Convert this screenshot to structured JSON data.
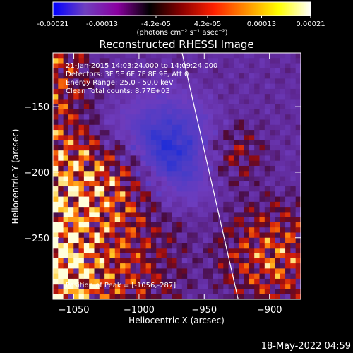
{
  "chart_data": {
    "type": "heatmap",
    "title": "Reconstructed RHESSI Image",
    "colorbar": {
      "ticks": [
        "-0.00021",
        "-0.00013",
        "-4.2e-05",
        "4.2e-05",
        "0.00013",
        "0.00021"
      ],
      "tick_values": [
        -0.00021,
        -0.00013,
        -4.2e-05,
        4.2e-05,
        0.00013,
        0.00021
      ],
      "range": [
        -0.00021,
        0.00021
      ],
      "units_label": "(photons cm⁻² s⁻¹ asec⁻²)",
      "colors": [
        "#0000ff",
        "#6f3fbf",
        "#8a00a0",
        "#000000",
        "#8b0000",
        "#ff2000",
        "#ff9000",
        "#ffff00",
        "#ffffff"
      ]
    },
    "xlabel": "Heliocentric X (arcsec)",
    "ylabel": "Heliocentric Y (arcsec)",
    "xlim": [
      -1066,
      -876
    ],
    "ylim": [
      -297,
      -109
    ],
    "x_ticks": [
      -1050,
      -1000,
      -950,
      -900
    ],
    "y_ticks": [
      -150,
      -200,
      -250
    ],
    "x_tick_labels": [
      "−1050",
      "−1000",
      "−950",
      "−900"
    ],
    "y_tick_labels": [
      "−150",
      "−200",
      "−250"
    ],
    "limb_line": {
      "x": [
        -967,
        -924
      ],
      "y": [
        -109,
        -297
      ],
      "color": "#ffffff"
    },
    "info_lines": [
      "21-Jan-2015 14:03:24.000 to 14:09:24.000",
      "Detectors: 3F 5F 6F 7F 8F 9F, Att 0",
      "Energy Range: 25.0 - 50.0 keV",
      "Clean     Total counts: 8.77E+03"
    ],
    "peak_label": "Position of Peak = [-1056,-287]",
    "peak_position": [
      -1056,
      -287
    ]
  },
  "footer_timestamp": "18-May-2022 04:59"
}
